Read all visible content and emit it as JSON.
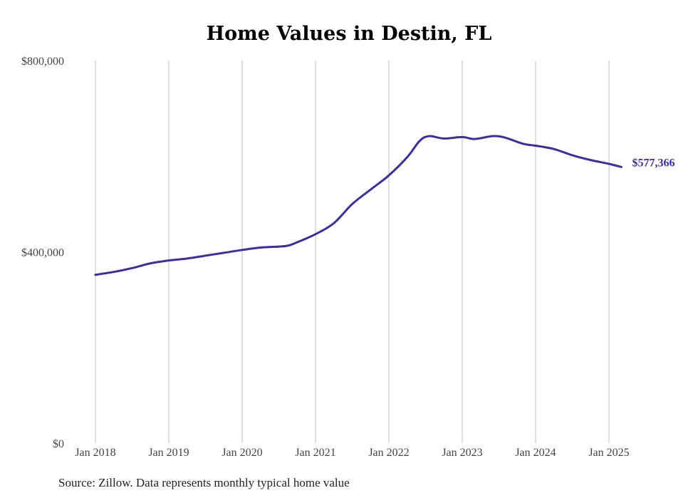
{
  "chart_data": {
    "type": "line",
    "title": "Home Values in Destin, FL",
    "source": "Source: Zillow. Data represents monthly typical home value",
    "ylim": [
      0,
      800000
    ],
    "yticks": [
      0,
      400000,
      800000
    ],
    "ytick_labels": [
      "$0",
      "$400,000",
      "$800,000"
    ],
    "xlim": [
      2018.0,
      2025.25
    ],
    "xticks": [
      2018,
      2019,
      2020,
      2021,
      2022,
      2023,
      2024,
      2025
    ],
    "xtick_labels": [
      "Jan 2018",
      "Jan 2019",
      "Jan 2020",
      "Jan 2021",
      "Jan 2022",
      "Jan 2023",
      "Jan 2024",
      "Jan 2025"
    ],
    "grid": "vertical",
    "line_color": "#3b3192",
    "end_label": "$577,366",
    "series": [
      {
        "x": [
          2018.0,
          2018.25,
          2018.5,
          2018.75,
          2019.0,
          2019.25,
          2019.5,
          2019.75,
          2020.0,
          2020.25,
          2020.5,
          2020.625,
          2020.75,
          2021.0,
          2021.25,
          2021.5,
          2021.75,
          2022.0,
          2022.25,
          2022.42,
          2022.55,
          2022.75,
          2023.0,
          2023.17,
          2023.42,
          2023.58,
          2023.83,
          2024.0,
          2024.25,
          2024.5,
          2024.75,
          2025.0,
          2025.17
        ],
        "y": [
          352000,
          358000,
          366000,
          376000,
          382000,
          386000,
          392000,
          398000,
          404000,
          409000,
          411000,
          413000,
          420000,
          437000,
          460000,
          500000,
          530000,
          560000,
          598000,
          632000,
          642000,
          637000,
          640000,
          636000,
          642000,
          639000,
          626000,
          622000,
          615000,
          602000,
          592000,
          584000,
          577366
        ]
      }
    ]
  }
}
